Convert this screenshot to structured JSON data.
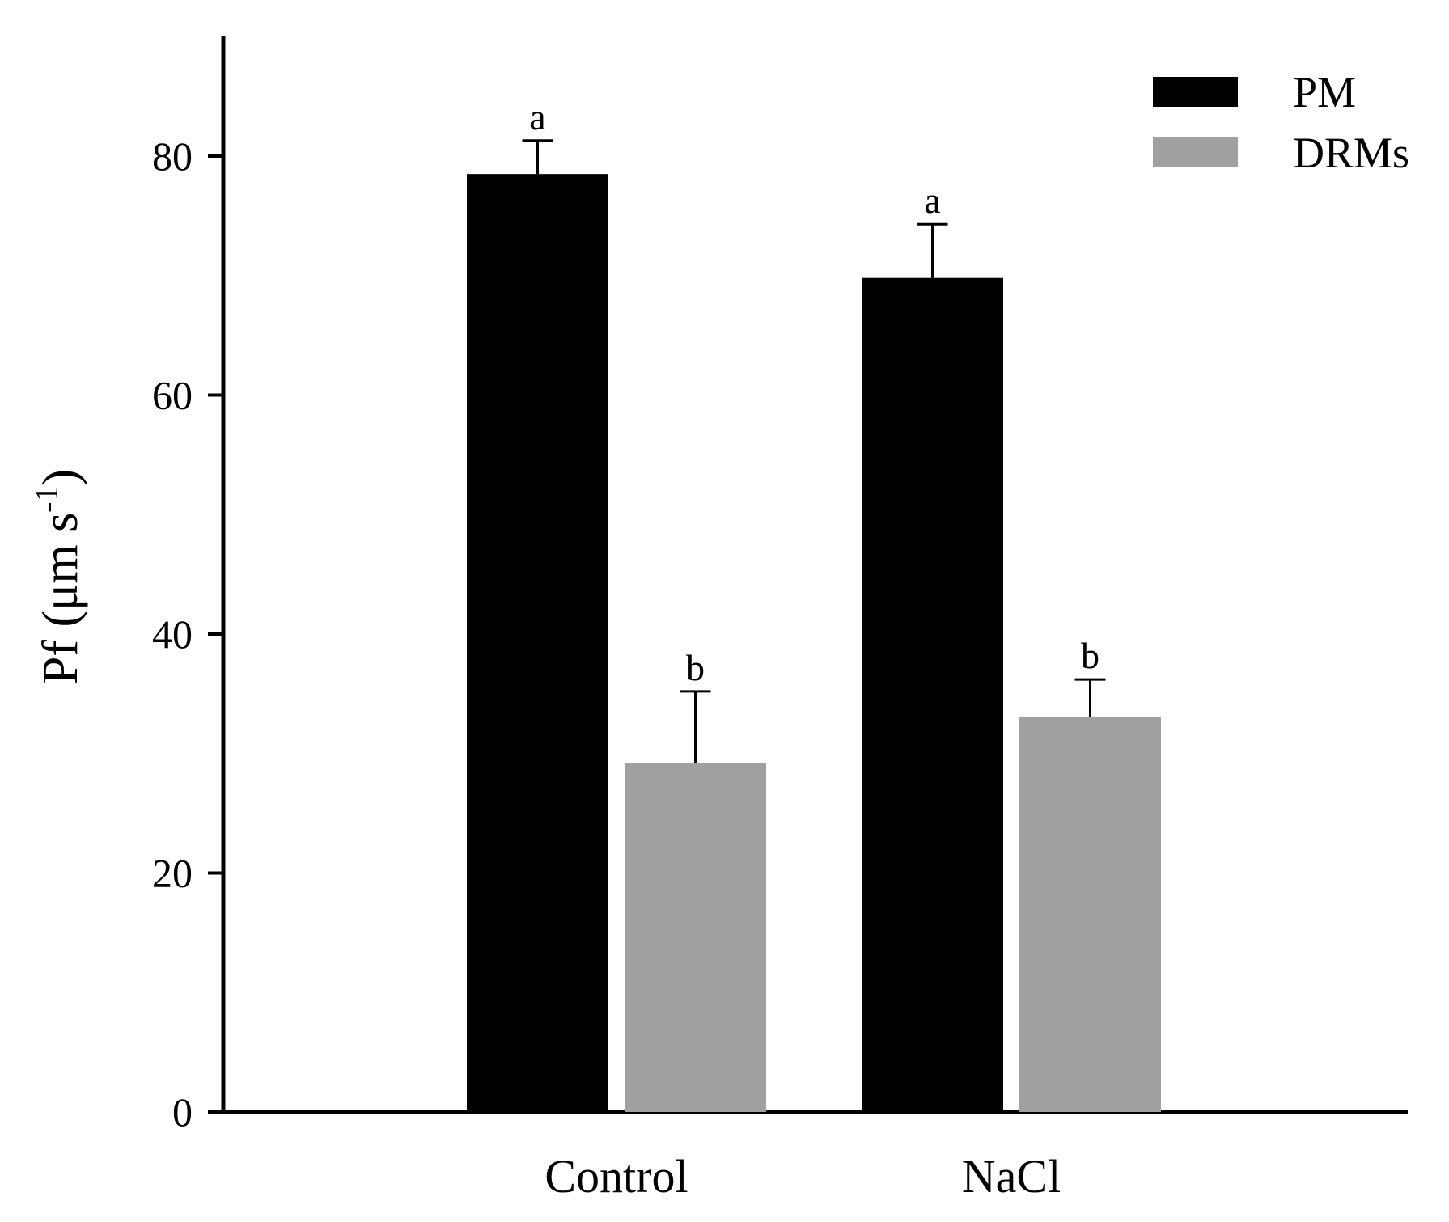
{
  "chart_data": {
    "type": "bar",
    "title": "",
    "xlabel": "",
    "ylabel": "Pf (μm s",
    "ylabel_sup": "-1",
    "ylabel_close": ")",
    "ylim": [
      0,
      90
    ],
    "yticks": [
      0,
      20,
      40,
      60,
      80
    ],
    "categories": [
      "Control",
      "NaCl"
    ],
    "series": [
      {
        "name": "PM",
        "color": "#000000",
        "values": [
          78.5,
          69.8
        ],
        "errors": [
          2.8,
          4.5
        ],
        "letters": [
          "a",
          "a"
        ]
      },
      {
        "name": "DRMs",
        "color": "#a0a0a0",
        "values": [
          29.2,
          33.1
        ],
        "errors": [
          6.0,
          3.1
        ],
        "letters": [
          "b",
          "b"
        ]
      }
    ],
    "legend": "top-right",
    "grid": false
  }
}
